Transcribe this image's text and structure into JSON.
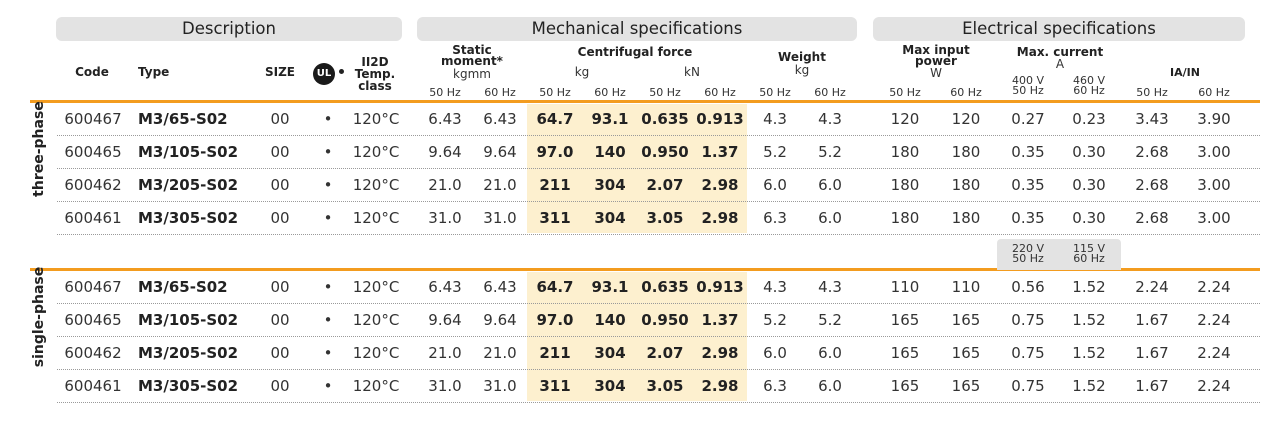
{
  "groups": {
    "description": "Description",
    "mechanical": "Mechanical specifications",
    "electrical": "Electrical specifications"
  },
  "headers": {
    "code": "Code",
    "type": "Type",
    "size": "SIZE",
    "ul_logo_text": "UL",
    "ii2d_1": "II2D",
    "ii2d_2": "Temp.",
    "ii2d_3": "class",
    "static_1": "Static",
    "static_2": "moment*",
    "static_unit": "kgmm",
    "centrifugal": "Centrifugal force",
    "cf_kg": "kg",
    "cf_kn": "kN",
    "weight": "Weight",
    "weight_unit": "kg",
    "maxpower_1": "Max input",
    "maxpower_2": "power",
    "maxpower_unit": "W",
    "maxcurrent": "Max. current",
    "maxcurrent_unit": "A",
    "ratio": "IA/IN",
    "hz50": "50 Hz",
    "hz60": "60 Hz",
    "v400": "400 V",
    "v460": "460 V",
    "v220": "220 V",
    "v115": "115 V"
  },
  "sections": {
    "three": "three-phase",
    "single": "single-phase"
  },
  "three_phase": [
    {
      "code": "600467",
      "type": "M3/65-S02",
      "size": "00",
      "dot": "•",
      "temp": "120°C",
      "sm50": "6.43",
      "sm60": "6.43",
      "kg50": "64.7",
      "kg60": "93.1",
      "kn50": "0.635",
      "kn60": "0.913",
      "w50": "4.3",
      "w60": "4.3",
      "p50": "120",
      "p60": "120",
      "a1": "0.27",
      "a2": "0.23",
      "r50": "3.43",
      "r60": "3.90"
    },
    {
      "code": "600465",
      "type": "M3/105-S02",
      "size": "00",
      "dot": "•",
      "temp": "120°C",
      "sm50": "9.64",
      "sm60": "9.64",
      "kg50": "97.0",
      "kg60": "140",
      "kn50": "0.950",
      "kn60": "1.37",
      "w50": "5.2",
      "w60": "5.2",
      "p50": "180",
      "p60": "180",
      "a1": "0.35",
      "a2": "0.30",
      "r50": "2.68",
      "r60": "3.00"
    },
    {
      "code": "600462",
      "type": "M3/205-S02",
      "size": "00",
      "dot": "•",
      "temp": "120°C",
      "sm50": "21.0",
      "sm60": "21.0",
      "kg50": "211",
      "kg60": "304",
      "kn50": "2.07",
      "kn60": "2.98",
      "w50": "6.0",
      "w60": "6.0",
      "p50": "180",
      "p60": "180",
      "a1": "0.35",
      "a2": "0.30",
      "r50": "2.68",
      "r60": "3.00"
    },
    {
      "code": "600461",
      "type": "M3/305-S02",
      "size": "00",
      "dot": "•",
      "temp": "120°C",
      "sm50": "31.0",
      "sm60": "31.0",
      "kg50": "311",
      "kg60": "304",
      "kn50": "3.05",
      "kn60": "2.98",
      "w50": "6.3",
      "w60": "6.0",
      "p50": "180",
      "p60": "180",
      "a1": "0.35",
      "a2": "0.30",
      "r50": "2.68",
      "r60": "3.00"
    }
  ],
  "single_phase": [
    {
      "code": "600467",
      "type": "M3/65-S02",
      "size": "00",
      "dot": "•",
      "temp": "120°C",
      "sm50": "6.43",
      "sm60": "6.43",
      "kg50": "64.7",
      "kg60": "93.1",
      "kn50": "0.635",
      "kn60": "0.913",
      "w50": "4.3",
      "w60": "4.3",
      "p50": "110",
      "p60": "110",
      "a1": "0.56",
      "a2": "1.52",
      "r50": "2.24",
      "r60": "2.24"
    },
    {
      "code": "600465",
      "type": "M3/105-S02",
      "size": "00",
      "dot": "•",
      "temp": "120°C",
      "sm50": "9.64",
      "sm60": "9.64",
      "kg50": "97.0",
      "kg60": "140",
      "kn50": "0.950",
      "kn60": "1.37",
      "w50": "5.2",
      "w60": "5.2",
      "p50": "165",
      "p60": "165",
      "a1": "0.75",
      "a2": "1.52",
      "r50": "1.67",
      "r60": "2.24"
    },
    {
      "code": "600462",
      "type": "M3/205-S02",
      "size": "00",
      "dot": "•",
      "temp": "120°C",
      "sm50": "21.0",
      "sm60": "21.0",
      "kg50": "211",
      "kg60": "304",
      "kn50": "2.07",
      "kn60": "2.98",
      "w50": "6.0",
      "w60": "6.0",
      "p50": "165",
      "p60": "165",
      "a1": "0.75",
      "a2": "1.52",
      "r50": "1.67",
      "r60": "2.24"
    },
    {
      "code": "600461",
      "type": "M3/305-S02",
      "size": "00",
      "dot": "•",
      "temp": "120°C",
      "sm50": "31.0",
      "sm60": "31.0",
      "kg50": "311",
      "kg60": "304",
      "kn50": "3.05",
      "kn60": "2.98",
      "w50": "6.3",
      "w60": "6.0",
      "p50": "165",
      "p60": "165",
      "a1": "0.75",
      "a2": "1.52",
      "r50": "1.67",
      "r60": "2.24"
    }
  ]
}
